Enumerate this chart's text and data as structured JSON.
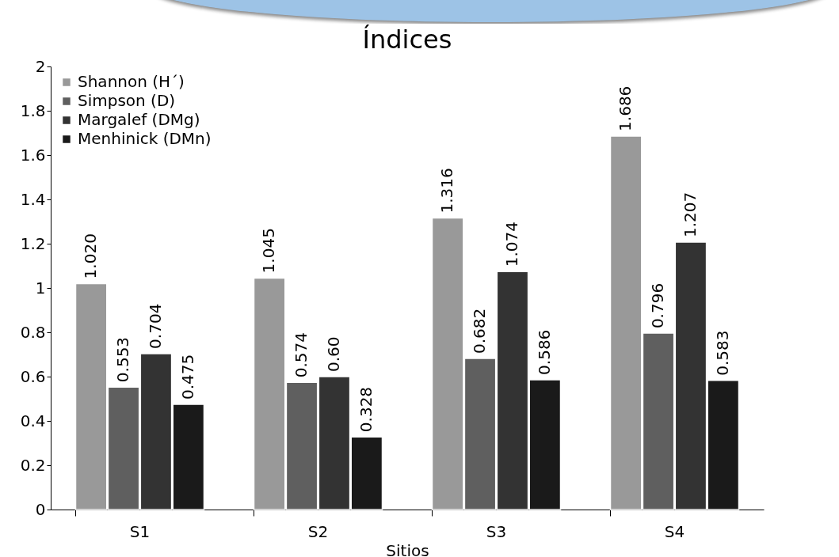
{
  "chart_data": {
    "type": "bar",
    "title": "Índices",
    "xlabel": "Sitios",
    "categories": [
      "S1",
      "S2",
      "S3",
      "S4"
    ],
    "series": [
      {
        "name": "Shannon (H´)",
        "color": "#999999",
        "values": [
          1.02,
          1.045,
          1.316,
          1.686
        ],
        "value_labels": [
          "1.020",
          "1.045",
          "1.316",
          "1.686"
        ]
      },
      {
        "name": "Simpson (D)",
        "color": "#5f5f5f",
        "values": [
          0.553,
          0.574,
          0.682,
          0.796
        ],
        "value_labels": [
          "0.553",
          "0.574",
          "0.682",
          "0.796"
        ]
      },
      {
        "name": "Margalef (DMg)",
        "color": "#333333",
        "values": [
          0.704,
          0.6,
          1.074,
          1.207
        ],
        "value_labels": [
          "0.704",
          "0.60",
          "1.074",
          "1.207"
        ]
      },
      {
        "name": "Menhinick (DMn)",
        "color": "#1a1a1a",
        "values": [
          0.475,
          0.328,
          0.586,
          0.583
        ],
        "value_labels": [
          "0.475",
          "0.328",
          "0.586",
          "0.583"
        ]
      }
    ],
    "ylim": [
      0,
      2
    ],
    "yticks": [
      0,
      0.2,
      0.4,
      0.6,
      0.8,
      1,
      1.2,
      1.4,
      1.6,
      1.8,
      2
    ],
    "grid": false,
    "legend": "top left"
  }
}
